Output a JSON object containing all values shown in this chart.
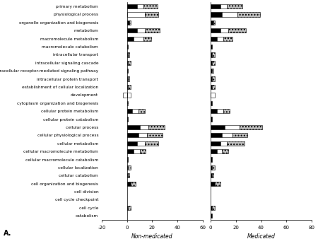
{
  "categories": [
    "primary metabolism",
    "physiological process",
    "organelle organization and biogenesis",
    "metabolism",
    "macromolecule metabolism",
    "macromolecule catabolism",
    "intracellular transport",
    "intracellular signaling cascade",
    "intracellular receptor-mediated signaling pathway",
    "intracellular protein transport",
    "establishment of cellular localization",
    "development",
    "cytoplasm organization and biogenesis",
    "cellular protein metabolism",
    "cellular protein catabolism",
    "cellular process",
    "cellular physiological process",
    "cellular metabolism",
    "cellular macromolecule metabolism",
    "cellular macromolecule catabolism",
    "cellular localization",
    "cellular catabolism",
    "cell organization and biogenesis",
    "cell division",
    "cell cycle checkpoint",
    "cell cycle",
    "catabolism"
  ],
  "nm_black": [
    8,
    0,
    2,
    8,
    5,
    1,
    1,
    1,
    1,
    1,
    1,
    0,
    0,
    4,
    1,
    10,
    9,
    8,
    5,
    1,
    1,
    1,
    3,
    0,
    0,
    1,
    0
  ],
  "nm_white": [
    5,
    14,
    0,
    6,
    8,
    0,
    0,
    0,
    0,
    0,
    0,
    3,
    0,
    5,
    0,
    7,
    7,
    6,
    5,
    0,
    0,
    0,
    0,
    0,
    0,
    0,
    0
  ],
  "nm_dotted": [
    11,
    11,
    1,
    12,
    6,
    0,
    1,
    2,
    0,
    1,
    2,
    0,
    1,
    5,
    0,
    13,
    12,
    11,
    5,
    0,
    2,
    1,
    4,
    0,
    0,
    2,
    0
  ],
  "nm_neg": [
    0,
    0,
    0,
    0,
    0,
    0,
    0,
    0,
    0,
    0,
    0,
    -3,
    0,
    0,
    0,
    0,
    0,
    0,
    0,
    0,
    0,
    0,
    0,
    0,
    0,
    0,
    0
  ],
  "med_black": [
    8,
    9,
    2,
    8,
    5,
    1,
    1,
    1,
    1,
    1,
    1,
    0,
    1,
    5,
    1,
    11,
    9,
    8,
    5,
    1,
    1,
    1,
    3,
    0,
    0,
    1,
    1
  ],
  "med_white": [
    5,
    12,
    0,
    6,
    5,
    0,
    0,
    0,
    0,
    0,
    0,
    3,
    0,
    5,
    0,
    12,
    8,
    5,
    4,
    0,
    0,
    0,
    0,
    0,
    0,
    0,
    0
  ],
  "med_dotted": [
    12,
    18,
    1,
    14,
    7,
    0,
    2,
    2,
    1,
    2,
    2,
    0,
    0,
    5,
    0,
    18,
    12,
    14,
    5,
    0,
    2,
    1,
    5,
    0,
    0,
    2,
    0
  ],
  "med_neg": [
    0,
    0,
    0,
    0,
    0,
    0,
    0,
    0,
    0,
    0,
    0,
    -3,
    0,
    0,
    0,
    0,
    0,
    0,
    0,
    0,
    0,
    0,
    0,
    0,
    0,
    0,
    0
  ],
  "xlim_nm": [
    -20,
    60
  ],
  "xlim_med": [
    0,
    80
  ],
  "xticks_nm": [
    -20,
    0,
    20,
    40,
    60
  ],
  "xticks_med": [
    0,
    20,
    40,
    60,
    80
  ],
  "xlabel_nm": "Non-medicated",
  "xlabel_med": "Medicated",
  "label_a": "A.",
  "black_color": "#000000",
  "white_color": "#ffffff",
  "dot_color": "#c0c0c0",
  "bar_height": 0.55,
  "fig_width": 4.5,
  "fig_height": 3.38,
  "dpi": 100,
  "fontsize_labels": 4.2,
  "fontsize_axis": 5.0,
  "edge_color": "#000000",
  "hatch_pattern": "...."
}
